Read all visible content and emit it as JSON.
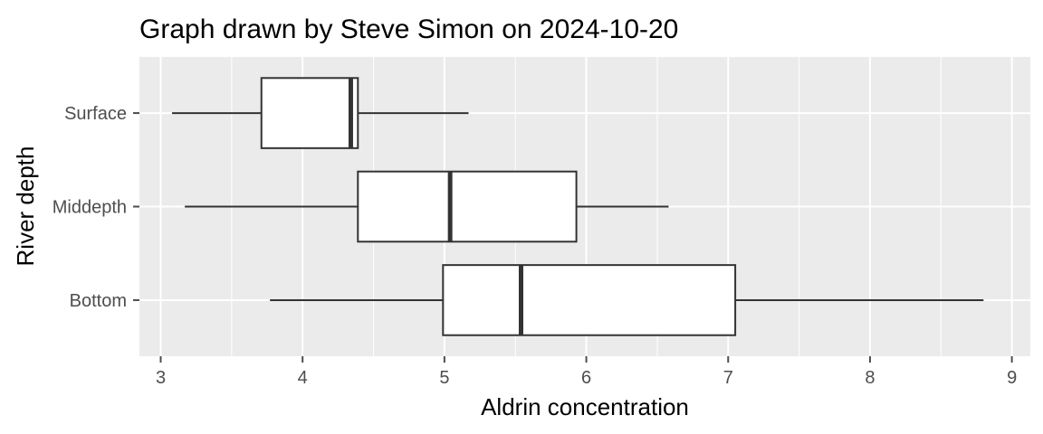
{
  "chart_data": {
    "type": "boxplot",
    "orientation": "horizontal",
    "title": "Graph drawn by Steve Simon on 2024-10-20",
    "xlabel": "Aldrin concentration",
    "ylabel": "River depth",
    "xlim": [
      2.85,
      9.13
    ],
    "x_ticks": [
      3,
      4,
      5,
      6,
      7,
      8,
      9
    ],
    "x_tick_labels": [
      "3",
      "4",
      "5",
      "6",
      "7",
      "8",
      "9"
    ],
    "categories": [
      "Surface",
      "Middepth",
      "Bottom"
    ],
    "boxes": [
      {
        "category": "Surface",
        "whisker_low": 3.08,
        "q1": 3.71,
        "median": 4.34,
        "q3": 4.39,
        "whisker_high": 5.17
      },
      {
        "category": "Middepth",
        "whisker_low": 3.17,
        "q1": 4.39,
        "median": 5.04,
        "q3": 5.93,
        "whisker_high": 6.58
      },
      {
        "category": "Bottom",
        "whisker_low": 3.77,
        "q1": 4.99,
        "median": 5.54,
        "q3": 7.05,
        "whisker_high": 8.8
      }
    ],
    "colors": {
      "panel": "#ebebeb",
      "grid": "#ffffff",
      "box_fill": "#ffffff",
      "box_stroke": "#333333",
      "tick": "#4d4d4d"
    }
  }
}
